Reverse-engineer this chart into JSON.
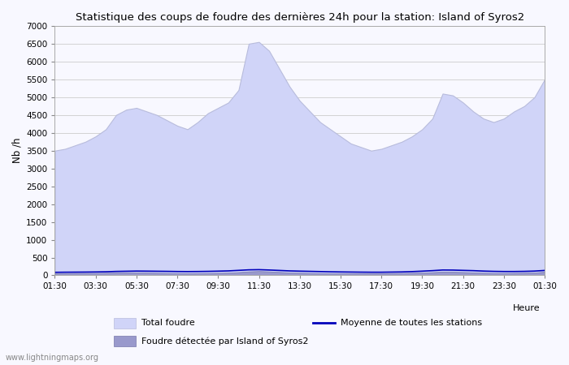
{
  "title": "Statistique des coups de foudre des dernières 24h pour la station: Island of Syros2",
  "ylabel": "Nb /h",
  "xlabel": "Heure",
  "watermark": "www.lightningmaps.org",
  "ylim": [
    0,
    7000
  ],
  "yticks": [
    0,
    500,
    1000,
    1500,
    2000,
    2500,
    3000,
    3500,
    4000,
    4500,
    5000,
    5500,
    6000,
    6500,
    7000
  ],
  "xtick_labels": [
    "01:30",
    "03:30",
    "05:30",
    "07:30",
    "09:30",
    "11:30",
    "13:30",
    "15:30",
    "17:30",
    "19:30",
    "21:30",
    "23:30",
    "01:30"
  ],
  "legend_labels": [
    "Total foudre",
    "Moyenne de toutes les stations",
    "Foudre détectée par Island of Syros2"
  ],
  "total_foudre_color": "#d0d4f8",
  "station_foudre_color": "#9999cc",
  "moyenne_color": "#0000bb",
  "background_color": "#f8f8ff",
  "grid_color": "#cccccc",
  "total_foudre": [
    3500,
    3550,
    3650,
    3750,
    3900,
    4100,
    4500,
    4650,
    4700,
    4600,
    4500,
    4350,
    4200,
    4100,
    4300,
    4550,
    4700,
    4850,
    5200,
    6500,
    6550,
    6300,
    5800,
    5300,
    4900,
    4600,
    4300,
    4100,
    3900,
    3700,
    3600,
    3500,
    3550,
    3650,
    3750,
    3900,
    4100,
    4400,
    5100,
    5050,
    4850,
    4600,
    4400,
    4300,
    4400,
    4600,
    4750,
    5000,
    5500
  ],
  "station_foudre": [
    60,
    60,
    65,
    65,
    65,
    70,
    75,
    80,
    80,
    75,
    70,
    65,
    62,
    60,
    62,
    65,
    70,
    75,
    90,
    110,
    120,
    110,
    95,
    80,
    72,
    65,
    60,
    58,
    55,
    55,
    55,
    55,
    58,
    62,
    65,
    70,
    78,
    88,
    105,
    100,
    92,
    82,
    72,
    65,
    65,
    68,
    72,
    80,
    100
  ],
  "moyenne": [
    85,
    88,
    90,
    92,
    95,
    100,
    110,
    115,
    120,
    118,
    115,
    112,
    108,
    106,
    108,
    112,
    118,
    125,
    140,
    155,
    160,
    150,
    138,
    125,
    118,
    112,
    106,
    100,
    96,
    93,
    90,
    88,
    88,
    92,
    96,
    105,
    118,
    132,
    150,
    148,
    140,
    132,
    120,
    112,
    108,
    108,
    112,
    120,
    138
  ]
}
